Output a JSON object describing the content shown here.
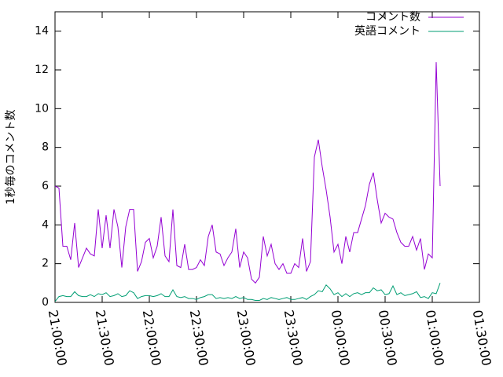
{
  "chart_data": {
    "type": "line",
    "y_label": "1秒毎のコメント数",
    "x": [
      "21:00:00",
      "21:02:30",
      "21:05:00",
      "21:07:30",
      "21:10:00",
      "21:12:30",
      "21:15:00",
      "21:17:30",
      "21:20:00",
      "21:22:30",
      "21:25:00",
      "21:27:30",
      "21:30:00",
      "21:32:30",
      "21:35:00",
      "21:37:30",
      "21:40:00",
      "21:42:30",
      "21:45:00",
      "21:47:30",
      "21:50:00",
      "21:52:30",
      "21:55:00",
      "21:57:30",
      "22:00:00",
      "22:02:30",
      "22:05:00",
      "22:07:30",
      "22:10:00",
      "22:12:30",
      "22:15:00",
      "22:17:30",
      "22:20:00",
      "22:22:30",
      "22:25:00",
      "22:27:30",
      "22:30:00",
      "22:32:30",
      "22:35:00",
      "22:37:30",
      "22:40:00",
      "22:42:30",
      "22:45:00",
      "22:47:30",
      "22:50:00",
      "22:52:30",
      "22:55:00",
      "22:57:30",
      "23:00:00",
      "23:02:30",
      "23:05:00",
      "23:07:30",
      "23:10:00",
      "23:12:30",
      "23:15:00",
      "23:17:30",
      "23:20:00",
      "23:22:30",
      "23:25:00",
      "23:27:30",
      "23:30:00",
      "23:32:30",
      "23:35:00",
      "23:37:30",
      "23:40:00",
      "23:42:30",
      "23:45:00",
      "23:47:30",
      "23:50:00",
      "23:52:30",
      "23:55:00",
      "23:57:30",
      "00:00:00",
      "00:02:30",
      "00:05:00",
      "00:07:30",
      "00:10:00",
      "00:12:30",
      "00:15:00",
      "00:17:30",
      "00:20:00",
      "00:22:30",
      "00:25:00",
      "00:27:30",
      "00:30:00",
      "00:32:30",
      "00:35:00",
      "00:37:30",
      "00:40:00",
      "00:42:30",
      "00:45:00",
      "00:47:30",
      "00:50:00",
      "00:52:30",
      "00:55:00",
      "00:57:30",
      "01:00:00",
      "01:02:30",
      "01:05:00"
    ],
    "series": [
      {
        "name": "コメント数",
        "color": "#9400d3",
        "values": [
          6.0,
          5.9,
          2.9,
          2.9,
          2.2,
          4.1,
          1.8,
          2.3,
          2.8,
          2.5,
          2.4,
          4.8,
          2.8,
          4.5,
          2.8,
          4.8,
          3.9,
          1.8,
          3.9,
          4.8,
          4.8,
          1.6,
          2.1,
          3.1,
          3.3,
          2.3,
          2.9,
          4.4,
          2.4,
          2.1,
          4.8,
          1.9,
          1.8,
          3.0,
          1.7,
          1.7,
          1.8,
          2.2,
          1.9,
          3.4,
          4.0,
          2.6,
          2.5,
          1.9,
          2.3,
          2.6,
          3.8,
          1.8,
          2.6,
          2.3,
          1.2,
          1.0,
          1.3,
          3.4,
          2.4,
          3.0,
          2.0,
          1.7,
          2.0,
          1.5,
          1.5,
          2.0,
          1.8,
          3.3,
          1.6,
          2.1,
          7.5,
          8.4,
          7.0,
          5.8,
          4.4,
          2.6,
          3.0,
          2.0,
          3.4,
          2.6,
          3.6,
          3.6,
          4.3,
          5.0,
          6.1,
          6.7,
          5.3,
          4.1,
          4.6,
          4.4,
          4.3,
          3.6,
          3.1,
          2.9,
          2.9,
          3.4,
          2.7,
          3.3,
          1.7,
          2.5,
          2.3,
          12.4,
          6.0
        ]
      },
      {
        "name": "英語コメント",
        "color": "#009e73",
        "values": [
          0.05,
          0.3,
          0.35,
          0.3,
          0.3,
          0.55,
          0.35,
          0.3,
          0.3,
          0.4,
          0.3,
          0.45,
          0.4,
          0.5,
          0.3,
          0.35,
          0.45,
          0.3,
          0.35,
          0.6,
          0.5,
          0.2,
          0.3,
          0.35,
          0.35,
          0.3,
          0.35,
          0.45,
          0.3,
          0.3,
          0.65,
          0.3,
          0.25,
          0.3,
          0.2,
          0.2,
          0.15,
          0.25,
          0.3,
          0.4,
          0.4,
          0.2,
          0.25,
          0.2,
          0.25,
          0.2,
          0.3,
          0.2,
          0.25,
          0.15,
          0.15,
          0.1,
          0.1,
          0.2,
          0.15,
          0.25,
          0.2,
          0.15,
          0.2,
          0.25,
          0.15,
          0.15,
          0.2,
          0.25,
          0.15,
          0.3,
          0.4,
          0.6,
          0.55,
          0.9,
          0.7,
          0.4,
          0.5,
          0.3,
          0.45,
          0.3,
          0.45,
          0.5,
          0.4,
          0.5,
          0.5,
          0.75,
          0.6,
          0.65,
          0.4,
          0.45,
          0.85,
          0.4,
          0.5,
          0.35,
          0.4,
          0.45,
          0.55,
          0.25,
          0.3,
          0.2,
          0.5,
          0.45,
          1.0
        ]
      }
    ],
    "xlim": [
      "21:00:00",
      "01:30:00"
    ],
    "xticks": [
      "21:00:00",
      "21:30:00",
      "22:00:00",
      "22:30:00",
      "23:00:00",
      "23:30:00",
      "00:00:00",
      "00:30:00",
      "01:00:00",
      "01:30:00"
    ],
    "ylim": [
      0,
      15
    ],
    "yticks": [
      0,
      2,
      4,
      6,
      8,
      10,
      12,
      14
    ],
    "legend": "top-right"
  }
}
